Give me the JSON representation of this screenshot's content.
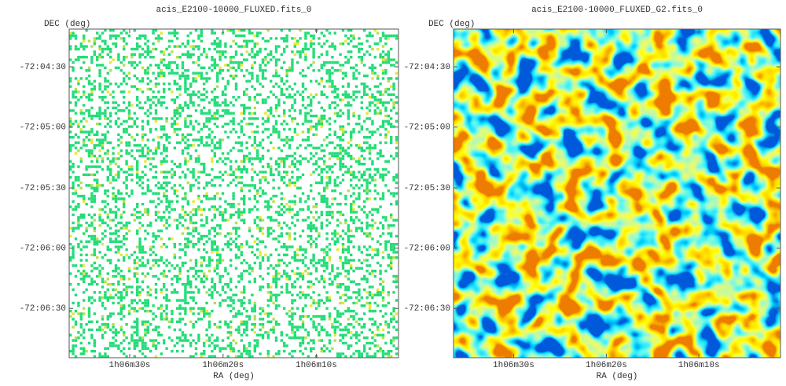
{
  "chart_data": [
    {
      "type": "image",
      "title": "acis_E2100-10000_FLUXED.fits_0",
      "xlabel": "RA (deg)",
      "ylabel": "DEC (deg)",
      "xlim": [
        16.652,
        16.505
      ],
      "ylim": [
        -72.1151,
        -72.0698
      ],
      "xticks": [
        {
          "value": 16.625,
          "label": "1h06m30s"
        },
        {
          "value": 16.5833,
          "label": "1h06m20s"
        },
        {
          "value": 16.5417,
          "label": "1h06m10s"
        }
      ],
      "yticks": [
        {
          "value": -72.075,
          "label": "-72:04:30"
        },
        {
          "value": -72.0833,
          "label": "-72:05:00"
        },
        {
          "value": -72.0917,
          "label": "-72:05:30"
        },
        {
          "value": -72.1,
          "label": "-72:06:00"
        },
        {
          "value": -72.1083,
          "label": "-72:06:30"
        }
      ]
    },
    {
      "type": "image",
      "title": "acis_E2100-10000_FLUXED_G2.fits_0",
      "xlabel": "RA (deg)",
      "ylabel": "DEC (deg)",
      "xlim": [
        16.652,
        16.505
      ],
      "ylim": [
        -72.1151,
        -72.0698
      ],
      "xticks": [
        {
          "value": 16.625,
          "label": "1h06m30s"
        },
        {
          "value": 16.5833,
          "label": "1h06m20s"
        },
        {
          "value": 16.5417,
          "label": "1h06m10s"
        }
      ],
      "yticks": [
        {
          "value": -72.075,
          "label": "-72:04:30"
        },
        {
          "value": -72.0833,
          "label": "-72:05:00"
        },
        {
          "value": -72.0917,
          "label": "-72:05:30"
        },
        {
          "value": -72.1,
          "label": "-72:06:00"
        },
        {
          "value": -72.1083,
          "label": "-72:06:30"
        }
      ]
    }
  ]
}
